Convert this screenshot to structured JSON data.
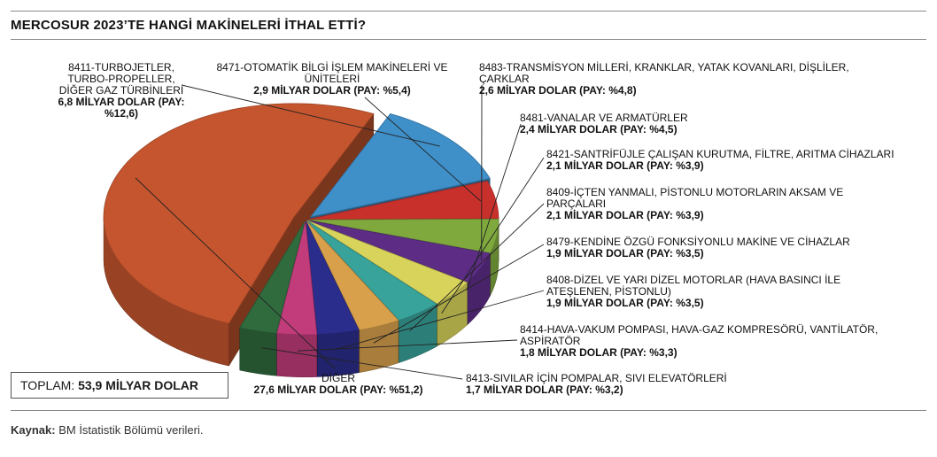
{
  "header": {
    "title": "MERCOSUR 2023’TE HANGİ MAKİNELERİ İTHAL ETTİ?"
  },
  "total": {
    "label": "TOPLAM:",
    "value": "53,9 MİLYAR DOLAR"
  },
  "source": {
    "label": "Kaynak:",
    "text": "BM İstatistik Bölümü verileri."
  },
  "chart_data": {
    "type": "pie",
    "unit": "MİLYAR DOLAR",
    "slices": [
      {
        "name": "DİĞER",
        "value": 27.6,
        "share": 51.2,
        "value_label": "27,6 MİLYAR DOLAR (PAY: %51,2)",
        "color": "#c4552e"
      },
      {
        "name": "8411-TURBOJETLER, TURBO-PROPELLER, DİĞER GAZ TÜRBİNLERİ",
        "value": 6.8,
        "share": 12.6,
        "value_label": "6,8 MİLYAR DOLAR (PAY: %12,6)",
        "color": "#3f8fc8"
      },
      {
        "name": "8471-OTOMATİK BİLGİ İŞLEM MAKİNELERİ VE ÜNİTELERİ",
        "value": 2.9,
        "share": 5.4,
        "value_label": "2,9 MİLYAR DOLAR (PAY: %5,4)",
        "color": "#c8302c"
      },
      {
        "name": "8483-TRANSMİSYON MİLLERİ, KRANKLAR, YATAK KOVANLARI, DİŞLİLER, ÇARKLAR",
        "value": 2.6,
        "share": 4.8,
        "value_label": "2,6 MİLYAR DOLAR (PAY: %4,8)",
        "color": "#7fa93d"
      },
      {
        "name": "8481-VANALAR VE ARMATÜRLER",
        "value": 2.4,
        "share": 4.5,
        "value_label": "2,4 MİLYAR DOLAR (PAY: %4,5)",
        "color": "#5d2d86"
      },
      {
        "name": "8421-SANTRİFÜJLE ÇALIŞAN KURUTMA, FİLTRE, ARITMA CİHAZLARI",
        "value": 2.1,
        "share": 3.9,
        "value_label": "2,1 MİLYAR DOLAR (PAY: %3,9)",
        "color": "#d8d35a"
      },
      {
        "name": "8409-İÇTEN YANMALI, PİSTONLU MOTORLARIN AKSAM VE PARÇALARI",
        "value": 2.1,
        "share": 3.9,
        "value_label": "2,1 MİLYAR DOLAR (PAY: %3,9)",
        "color": "#38a39a"
      },
      {
        "name": "8479-KENDİNE ÖZGÜ FONKSİYONLU MAKİNE VE CİHAZLAR",
        "value": 1.9,
        "share": 3.5,
        "value_label": "1,9 MİLYAR DOLAR (PAY: %3,5)",
        "color": "#d9a04b"
      },
      {
        "name": "8408-DİZEL VE YARI DİZEL MOTORLAR (HAVA BASINCI İLE ATEŞLENEN, PİSTONLU)",
        "value": 1.9,
        "share": 3.5,
        "value_label": "1,9 MİLYAR DOLAR (PAY: %3,5)",
        "color": "#2b2d8c"
      },
      {
        "name": "8414-HAVA-VAKUM POMPASI, HAVA-GAZ KOMPRESÖRÜ, VANTİLATÖR, ASPİRATÖR",
        "value": 1.8,
        "share": 3.3,
        "value_label": "1,8 MİLYAR DOLAR (PAY: %3,3)",
        "color": "#c23c7c"
      },
      {
        "name": "8413-SIVILAR İÇİN POMPALAR, SIVI ELEVATÖRLERİ",
        "value": 1.7,
        "share": 3.2,
        "value_label": "1,7 MİLYAR DOLAR (PAY: %3,2)",
        "color": "#2f6b3d"
      }
    ]
  }
}
